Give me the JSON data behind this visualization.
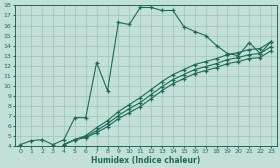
{
  "xlabel": "Humidex (Indice chaleur)",
  "bg_color": "#c2e0d8",
  "line_color": "#1a6b5a",
  "grid_color": "#9dc4b8",
  "xlim": [
    -0.5,
    23.5
  ],
  "ylim": [
    4,
    18
  ],
  "xticks": [
    0,
    1,
    2,
    3,
    4,
    5,
    6,
    7,
    8,
    9,
    10,
    11,
    12,
    13,
    14,
    15,
    16,
    17,
    18,
    19,
    20,
    21,
    22,
    23
  ],
  "yticks": [
    4,
    5,
    6,
    7,
    8,
    9,
    10,
    11,
    12,
    13,
    14,
    15,
    16,
    17,
    18
  ],
  "line1_x": [
    0,
    1,
    2,
    3,
    4,
    5,
    6,
    7,
    8,
    9,
    10,
    11,
    12,
    13,
    14,
    15,
    16,
    17,
    18,
    19,
    20,
    21,
    22,
    23
  ],
  "line1_y": [
    4.1,
    4.5,
    4.6,
    4.1,
    4.6,
    6.8,
    6.8,
    12.3,
    9.5,
    16.3,
    16.1,
    17.8,
    17.8,
    17.5,
    17.5,
    15.9,
    15.4,
    15.0,
    14.0,
    13.2,
    13.0,
    14.3,
    13.2,
    14.4
  ],
  "line2_x": [
    4,
    5,
    6,
    7,
    8,
    9,
    10,
    11,
    12,
    13,
    14,
    15,
    16,
    17,
    18,
    19,
    20,
    21,
    22,
    23
  ],
  "line2_y": [
    4.1,
    4.6,
    5.0,
    5.8,
    6.5,
    7.4,
    8.1,
    8.8,
    9.6,
    10.4,
    11.1,
    11.6,
    12.1,
    12.4,
    12.7,
    13.1,
    13.3,
    13.6,
    13.7,
    14.4
  ],
  "line3_x": [
    4,
    5,
    6,
    7,
    8,
    9,
    10,
    11,
    12,
    13,
    14,
    15,
    16,
    17,
    18,
    19,
    20,
    21,
    22,
    23
  ],
  "line3_y": [
    4.1,
    4.6,
    4.9,
    5.5,
    6.2,
    7.0,
    7.7,
    8.3,
    9.1,
    9.9,
    10.6,
    11.1,
    11.6,
    11.9,
    12.2,
    12.6,
    12.8,
    13.1,
    13.2,
    13.9
  ],
  "line4_x": [
    4,
    5,
    6,
    7,
    8,
    9,
    10,
    11,
    12,
    13,
    14,
    15,
    16,
    17,
    18,
    19,
    20,
    21,
    22,
    23
  ],
  "line4_y": [
    4.1,
    4.6,
    4.8,
    5.3,
    5.9,
    6.7,
    7.3,
    7.9,
    8.7,
    9.5,
    10.2,
    10.7,
    11.2,
    11.5,
    11.8,
    12.2,
    12.4,
    12.7,
    12.8,
    13.5
  ]
}
